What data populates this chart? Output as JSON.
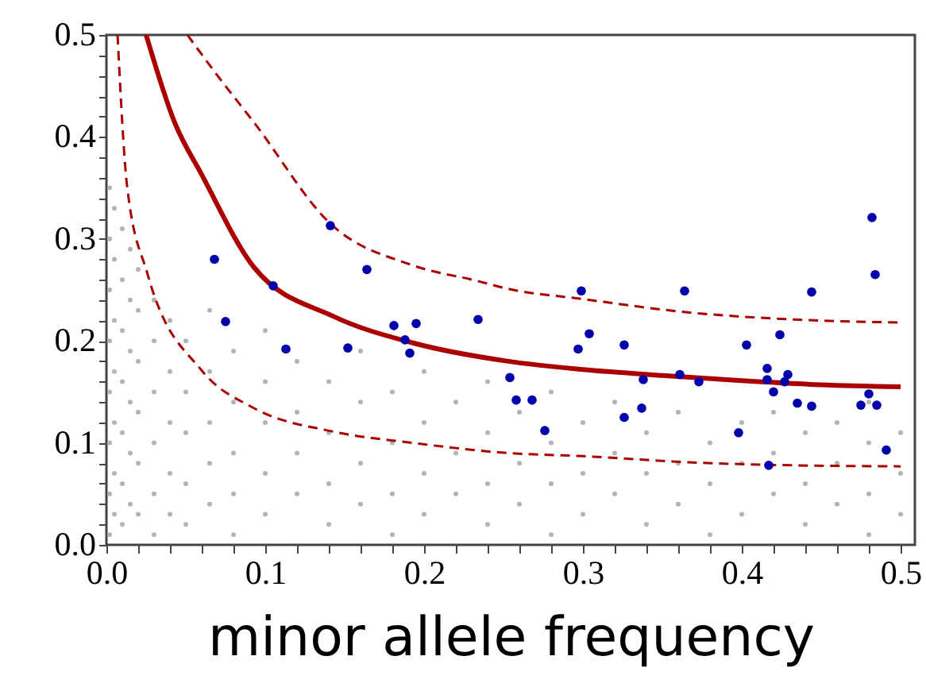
{
  "chart_data": {
    "type": "scatter",
    "xlabel": "minor allele frequency",
    "xlim": [
      0,
      0.509
    ],
    "ylim": [
      0,
      0.5
    ],
    "xticks": [
      {
        "value": 0,
        "label": "0.0"
      },
      {
        "value": 0.02,
        "label": null
      },
      {
        "value": 0.04,
        "label": null
      },
      {
        "value": 0.06,
        "label": null
      },
      {
        "value": 0.08,
        "label": null
      },
      {
        "value": 0.1,
        "label": "0.1"
      },
      {
        "value": 0.12,
        "label": null
      },
      {
        "value": 0.14,
        "label": null
      },
      {
        "value": 0.16,
        "label": null
      },
      {
        "value": 0.18,
        "label": null
      },
      {
        "value": 0.2,
        "label": "0.2"
      },
      {
        "value": 0.22,
        "label": null
      },
      {
        "value": 0.24,
        "label": null
      },
      {
        "value": 0.26,
        "label": null
      },
      {
        "value": 0.28,
        "label": null
      },
      {
        "value": 0.3,
        "label": "0.3"
      },
      {
        "value": 0.32,
        "label": null
      },
      {
        "value": 0.34,
        "label": null
      },
      {
        "value": 0.36,
        "label": null
      },
      {
        "value": 0.38,
        "label": null
      },
      {
        "value": 0.4,
        "label": "0.4"
      },
      {
        "value": 0.42,
        "label": null
      },
      {
        "value": 0.44,
        "label": null
      },
      {
        "value": 0.46,
        "label": null
      },
      {
        "value": 0.48,
        "label": null
      },
      {
        "value": 0.5,
        "label": "0.5"
      }
    ],
    "yticks": [
      {
        "value": 0,
        "label": "0.0"
      },
      {
        "value": 0.02,
        "label": null
      },
      {
        "value": 0.04,
        "label": null
      },
      {
        "value": 0.06,
        "label": null
      },
      {
        "value": 0.08,
        "label": null
      },
      {
        "value": 0.1,
        "label": "0.1"
      },
      {
        "value": 0.12,
        "label": null
      },
      {
        "value": 0.14,
        "label": null
      },
      {
        "value": 0.16,
        "label": null
      },
      {
        "value": 0.18,
        "label": null
      },
      {
        "value": 0.2,
        "label": "0.2"
      },
      {
        "value": 0.22,
        "label": null
      },
      {
        "value": 0.24,
        "label": null
      },
      {
        "value": 0.26,
        "label": null
      },
      {
        "value": 0.28,
        "label": null
      },
      {
        "value": 0.3,
        "label": "0.3"
      },
      {
        "value": 0.32,
        "label": null
      },
      {
        "value": 0.34,
        "label": null
      },
      {
        "value": 0.36,
        "label": null
      },
      {
        "value": 0.38,
        "label": null
      },
      {
        "value": 0.4,
        "label": "0.4"
      },
      {
        "value": 0.42,
        "label": null
      },
      {
        "value": 0.44,
        "label": null
      },
      {
        "value": 0.46,
        "label": null
      },
      {
        "value": 0.48,
        "label": null
      },
      {
        "value": 0.5,
        "label": "0.5"
      }
    ],
    "grid": false,
    "series": [
      {
        "marker": "circle",
        "color": "#b3b3b3",
        "x": [
          0.002,
          0.002,
          0.002,
          0.002,
          0.002,
          0.002,
          0.002,
          0.002,
          0.005,
          0.005,
          0.005,
          0.005,
          0.005,
          0.005,
          0.005,
          0.01,
          0.01,
          0.01,
          0.01,
          0.01,
          0.01,
          0.01,
          0.015,
          0.015,
          0.015,
          0.015,
          0.015,
          0.015,
          0.02,
          0.02,
          0.02,
          0.02,
          0.02,
          0.02,
          0.03,
          0.03,
          0.03,
          0.03,
          0.03,
          0.03,
          0.04,
          0.04,
          0.04,
          0.04,
          0.04,
          0.05,
          0.05,
          0.05,
          0.05,
          0.05,
          0.065,
          0.065,
          0.065,
          0.065,
          0.065,
          0.08,
          0.08,
          0.08,
          0.08,
          0.08,
          0.1,
          0.1,
          0.1,
          0.1,
          0.1,
          0.12,
          0.12,
          0.12,
          0.12,
          0.14,
          0.14,
          0.14,
          0.14,
          0.16,
          0.16,
          0.16,
          0.16,
          0.18,
          0.18,
          0.18,
          0.18,
          0.2,
          0.2,
          0.2,
          0.2,
          0.22,
          0.22,
          0.22,
          0.24,
          0.24,
          0.24,
          0.24,
          0.26,
          0.26,
          0.26,
          0.28,
          0.28,
          0.28,
          0.28,
          0.3,
          0.3,
          0.3,
          0.32,
          0.32,
          0.32,
          0.34,
          0.34,
          0.34,
          0.36,
          0.36,
          0.36,
          0.38,
          0.38,
          0.38,
          0.4,
          0.4,
          0.4,
          0.42,
          0.42,
          0.42,
          0.44,
          0.44,
          0.44,
          0.46,
          0.46,
          0.46,
          0.48,
          0.48,
          0.48,
          0.48,
          0.5,
          0.5,
          0.5
        ],
        "values": [
          0.35,
          0.3,
          0.25,
          0.2,
          0.15,
          0.1,
          0.05,
          0.01,
          0.33,
          0.28,
          0.22,
          0.17,
          0.12,
          0.07,
          0.03,
          0.31,
          0.26,
          0.21,
          0.16,
          0.11,
          0.06,
          0.02,
          0.29,
          0.24,
          0.19,
          0.14,
          0.09,
          0.04,
          0.27,
          0.23,
          0.18,
          0.13,
          0.08,
          0.03,
          0.24,
          0.2,
          0.15,
          0.1,
          0.05,
          0.01,
          0.22,
          0.17,
          0.12,
          0.07,
          0.03,
          0.2,
          0.15,
          0.11,
          0.06,
          0.02,
          0.23,
          0.17,
          0.12,
          0.08,
          0.04,
          0.19,
          0.14,
          0.09,
          0.05,
          0.01,
          0.21,
          0.16,
          0.12,
          0.07,
          0.03,
          0.18,
          0.13,
          0.09,
          0.05,
          0.16,
          0.11,
          0.06,
          0.02,
          0.19,
          0.14,
          0.08,
          0.04,
          0.15,
          0.1,
          0.05,
          0.01,
          0.17,
          0.12,
          0.07,
          0.03,
          0.14,
          0.09,
          0.05,
          0.16,
          0.11,
          0.06,
          0.02,
          0.13,
          0.08,
          0.04,
          0.15,
          0.1,
          0.06,
          0.01,
          0.12,
          0.07,
          0.03,
          0.14,
          0.09,
          0.05,
          0.11,
          0.07,
          0.02,
          0.13,
          0.08,
          0.04,
          0.1,
          0.06,
          0.01,
          0.12,
          0.08,
          0.03,
          0.13,
          0.09,
          0.05,
          0.11,
          0.06,
          0.02,
          0.12,
          0.08,
          0.04,
          0.14,
          0.1,
          0.05,
          0.01,
          0.11,
          0.07,
          0.03
        ]
      },
      {
        "type": "line",
        "marker": "none",
        "line_style": "solid",
        "color": "#aa0000",
        "x": [
          0.025,
          0.043,
          0.06,
          0.093,
          0.143,
          0.193,
          0.253,
          0.3,
          0.35,
          0.4,
          0.45,
          0.5
        ],
        "values": [
          0.5,
          0.414,
          0.363,
          0.272,
          0.224,
          0.198,
          0.18,
          0.172,
          0.166,
          0.161,
          0.157,
          0.155
        ]
      },
      {
        "type": "line",
        "marker": "none",
        "line_style": "dashed",
        "color": "#aa0000",
        "x": [
          0.051,
          0.07,
          0.093,
          0.141,
          0.193,
          0.233,
          0.253,
          0.3,
          0.366,
          0.433,
          0.5
        ],
        "values": [
          0.5,
          0.46,
          0.414,
          0.315,
          0.274,
          0.259,
          0.251,
          0.241,
          0.228,
          0.221,
          0.218
        ]
      },
      {
        "type": "line",
        "marker": "none",
        "line_style": "dashed",
        "color": "#aa0000",
        "x": [
          0.007,
          0.013,
          0.026,
          0.06,
          0.093,
          0.143,
          0.193,
          0.253,
          0.3,
          0.366,
          0.433,
          0.5
        ],
        "values": [
          0.5,
          0.352,
          0.265,
          0.171,
          0.134,
          0.111,
          0.1,
          0.09,
          0.087,
          0.081,
          0.078,
          0.077
        ]
      },
      {
        "marker": "circle",
        "color": "#0000aa",
        "x": [
          0.068,
          0.141,
          0.105,
          0.164,
          0.075,
          0.113,
          0.152,
          0.181,
          0.195,
          0.188,
          0.191,
          0.234,
          0.254,
          0.258,
          0.268,
          0.276,
          0.297,
          0.299,
          0.304,
          0.326,
          0.326,
          0.337,
          0.338,
          0.361,
          0.364,
          0.373,
          0.398,
          0.403,
          0.416,
          0.416,
          0.42,
          0.417,
          0.424,
          0.427,
          0.429,
          0.435,
          0.444,
          0.444,
          0.475,
          0.48,
          0.482,
          0.484,
          0.485,
          0.491
        ],
        "values": [
          0.28,
          0.313,
          0.254,
          0.27,
          0.219,
          0.192,
          0.193,
          0.215,
          0.217,
          0.201,
          0.188,
          0.221,
          0.164,
          0.142,
          0.142,
          0.112,
          0.192,
          0.249,
          0.207,
          0.196,
          0.125,
          0.134,
          0.162,
          0.167,
          0.249,
          0.16,
          0.11,
          0.196,
          0.173,
          0.162,
          0.15,
          0.078,
          0.206,
          0.16,
          0.167,
          0.139,
          0.248,
          0.136,
          0.137,
          0.148,
          0.321,
          0.265,
          0.137,
          0.093
        ]
      }
    ]
  }
}
